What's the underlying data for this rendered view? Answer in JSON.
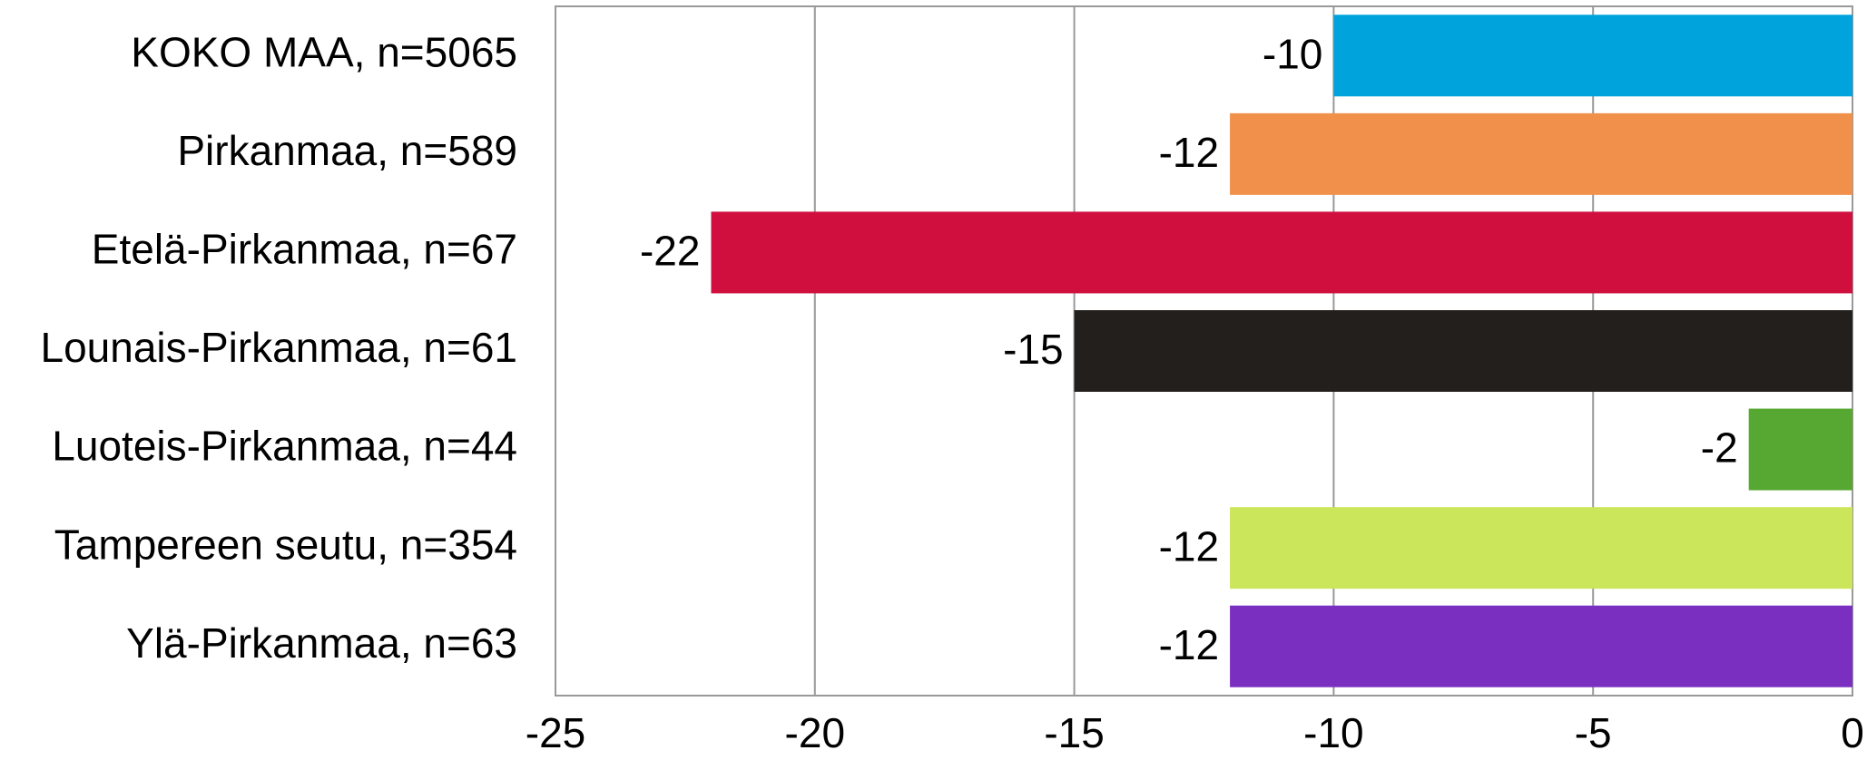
{
  "chart_data": {
    "type": "bar",
    "orientation": "horizontal",
    "categories": [
      "KOKO MAA, n=5065",
      "Pirkanmaa, n=589",
      "Etelä-Pirkanmaa, n=67",
      "Lounais-Pirkanmaa, n=61",
      "Luoteis-Pirkanmaa, n=44",
      "Tampereen seutu, n=354",
      "Ylä-Pirkanmaa, n=63"
    ],
    "values": [
      -10,
      -12,
      -22,
      -15,
      -2,
      -12,
      -12
    ],
    "colors": [
      "#00a3dc",
      "#f0904a",
      "#d00f3f",
      "#221f1d",
      "#57a832",
      "#cbe65a",
      "#7b2fc1"
    ],
    "xlim": [
      -25,
      0
    ],
    "xticks": [
      -25,
      -20,
      -15,
      -10,
      -5,
      0
    ],
    "grid": true
  }
}
